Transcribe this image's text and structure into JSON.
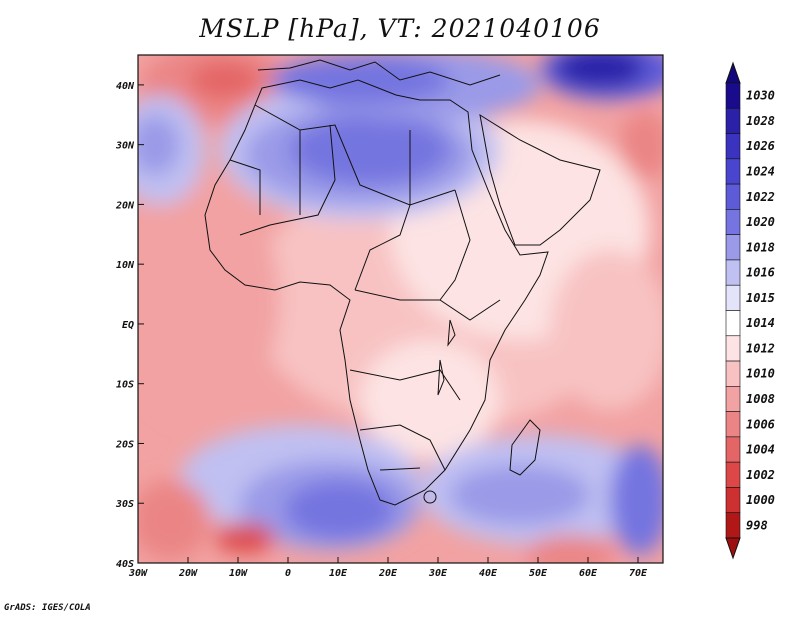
{
  "title": "MSLP [hPa], VT: 2021040106",
  "footer": "GrADS: IGES/COLA",
  "map": {
    "lon_range": [
      -30,
      75
    ],
    "lat_range": [
      -40,
      45
    ],
    "lon_ticks": [
      {
        "value": -30,
        "label": "30W"
      },
      {
        "value": -20,
        "label": "20W"
      },
      {
        "value": -10,
        "label": "10W"
      },
      {
        "value": 0,
        "label": "0"
      },
      {
        "value": 10,
        "label": "10E"
      },
      {
        "value": 20,
        "label": "20E"
      },
      {
        "value": 30,
        "label": "30E"
      },
      {
        "value": 40,
        "label": "40E"
      },
      {
        "value": 50,
        "label": "50E"
      },
      {
        "value": 60,
        "label": "60E"
      },
      {
        "value": 70,
        "label": "70E"
      }
    ],
    "lat_ticks": [
      {
        "value": 40,
        "label": "40N"
      },
      {
        "value": 30,
        "label": "30N"
      },
      {
        "value": 20,
        "label": "20N"
      },
      {
        "value": 10,
        "label": "10N"
      },
      {
        "value": 0,
        "label": "EQ"
      },
      {
        "value": -10,
        "label": "10S"
      },
      {
        "value": -20,
        "label": "20S"
      },
      {
        "value": -30,
        "label": "30S"
      },
      {
        "value": -40,
        "label": "40S"
      }
    ]
  },
  "colorbar": {
    "levels": [
      {
        "label": "1030",
        "color": "#1a0a8c"
      },
      {
        "label": "1028",
        "color": "#2b20a8"
      },
      {
        "label": "1026",
        "color": "#3a33bf"
      },
      {
        "label": "1024",
        "color": "#4a45cf"
      },
      {
        "label": "1022",
        "color": "#5e5bd9"
      },
      {
        "label": "1020",
        "color": "#7574e0"
      },
      {
        "label": "1018",
        "color": "#9a9ae8"
      },
      {
        "label": "1016",
        "color": "#c0c0f2"
      },
      {
        "label": "1015",
        "color": "#e3e3fa"
      },
      {
        "label": "1014",
        "color": "#ffffff"
      },
      {
        "label": "1012",
        "color": "#fde3e3"
      },
      {
        "label": "1010",
        "color": "#f8c2c2"
      },
      {
        "label": "1008",
        "color": "#f2a2a2"
      },
      {
        "label": "1006",
        "color": "#eb8585"
      },
      {
        "label": "1004",
        "color": "#e46565"
      },
      {
        "label": "1002",
        "color": "#dc4848"
      },
      {
        "label": "1000",
        "color": "#cc3030"
      },
      {
        "label": "998",
        "color": "#b01818"
      }
    ],
    "top_color": "#12087a",
    "bottom_color": "#9e1010"
  }
}
